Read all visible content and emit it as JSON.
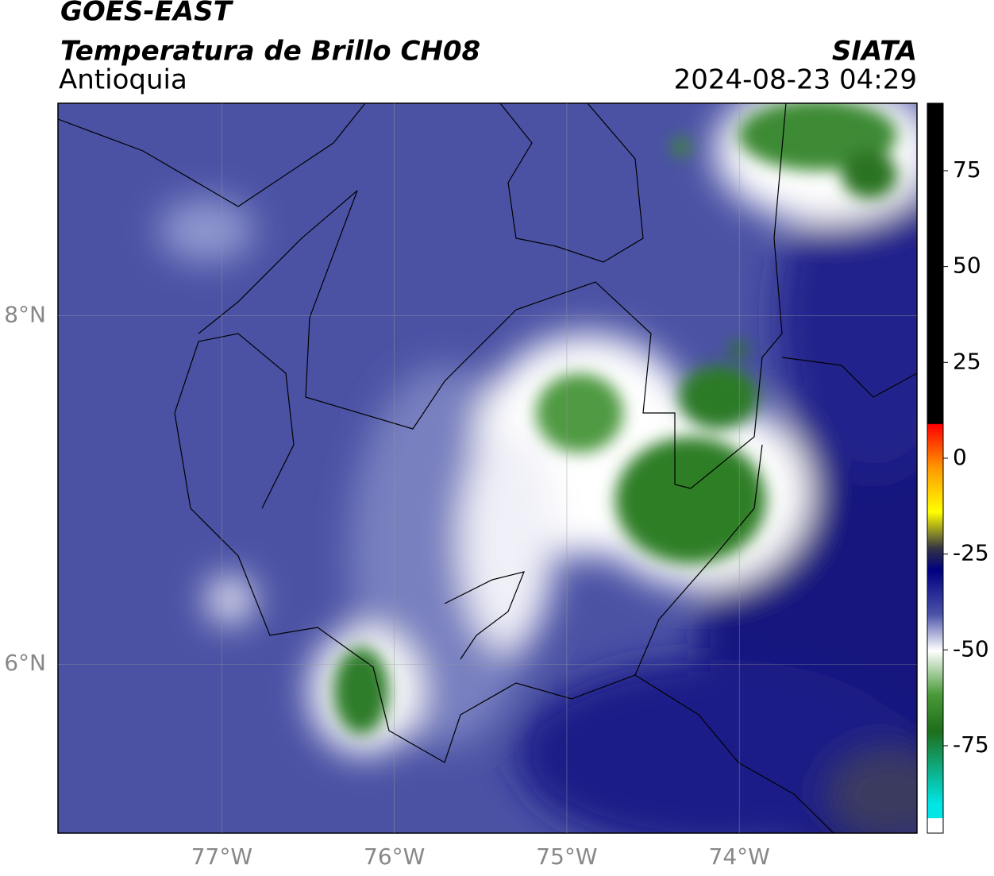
{
  "header": {
    "satellite": "GOES-EAST",
    "product": "Temperatura de Brillo CH08",
    "region": "Antioquia",
    "source": "SIATA",
    "datetime": "2024-08-23 04:29"
  },
  "map": {
    "xlim": [
      -77.95,
      -72.97
    ],
    "ylim": [
      5.03,
      9.22
    ],
    "xticks": [
      {
        "value": -77,
        "label": "77°W"
      },
      {
        "value": -76,
        "label": "76°W"
      },
      {
        "value": -75,
        "label": "75°W"
      },
      {
        "value": -74,
        "label": "74°W"
      }
    ],
    "yticks": [
      {
        "value": 8,
        "label": "8°N"
      },
      {
        "value": 6,
        "label": "6°N"
      }
    ]
  },
  "colorbar": {
    "lim": [
      -97.8,
      92.6
    ],
    "ticks": [
      75,
      50,
      25,
      0,
      -25,
      -50,
      -75
    ]
  }
}
